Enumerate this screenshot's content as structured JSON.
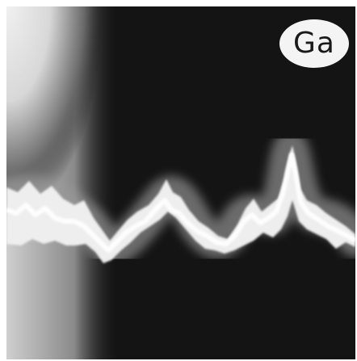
{
  "photo": {
    "element_label": "Ga",
    "background_color": "#141414",
    "trace_color": "#f2f2f2",
    "halo_color": "#e9e9e9"
  }
}
